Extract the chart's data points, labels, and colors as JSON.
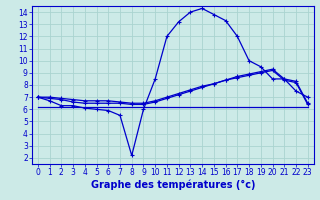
{
  "title": "Graphe des températures (°c)",
  "bg_color": "#cceae7",
  "grid_color": "#aad4d0",
  "line_color": "#0000cc",
  "xlim": [
    -0.5,
    23.5
  ],
  "ylim": [
    1.5,
    14.5
  ],
  "xticks": [
    0,
    1,
    2,
    3,
    4,
    5,
    6,
    7,
    8,
    9,
    10,
    11,
    12,
    13,
    14,
    15,
    16,
    17,
    18,
    19,
    20,
    21,
    22,
    23
  ],
  "yticks": [
    2,
    3,
    4,
    5,
    6,
    7,
    8,
    9,
    10,
    11,
    12,
    13,
    14
  ],
  "line1_x": [
    0,
    1,
    2,
    3,
    4,
    5,
    6,
    7,
    8,
    9,
    10,
    11,
    12,
    13,
    14,
    15,
    16,
    17,
    18,
    19,
    20,
    21,
    22,
    23
  ],
  "line1_y": [
    7.0,
    6.7,
    6.3,
    6.3,
    6.1,
    6.0,
    5.9,
    5.5,
    2.2,
    6.0,
    8.5,
    12.0,
    13.2,
    14.0,
    14.3,
    13.8,
    13.3,
    12.0,
    10.0,
    9.5,
    8.5,
    8.5,
    7.5,
    7.0
  ],
  "line2_x": [
    0,
    1,
    2,
    3,
    4,
    5,
    6,
    7,
    8,
    9,
    10,
    11,
    12,
    13,
    14,
    15,
    16,
    17,
    18,
    19,
    20,
    21,
    22,
    23
  ],
  "line2_y": [
    7.0,
    6.9,
    6.8,
    6.6,
    6.5,
    6.5,
    6.5,
    6.5,
    6.4,
    6.4,
    6.6,
    6.9,
    7.2,
    7.5,
    7.8,
    8.1,
    8.4,
    8.7,
    8.9,
    9.1,
    9.3,
    8.5,
    8.3,
    6.5
  ],
  "line3_x": [
    0,
    1,
    2,
    3,
    4,
    5,
    6,
    7,
    8,
    9,
    10,
    11,
    12,
    13,
    14,
    15,
    16,
    17,
    18,
    19,
    20,
    21,
    22,
    23
  ],
  "line3_y": [
    7.0,
    7.0,
    6.9,
    6.8,
    6.7,
    6.7,
    6.7,
    6.6,
    6.5,
    6.5,
    6.7,
    7.0,
    7.3,
    7.6,
    7.9,
    8.1,
    8.4,
    8.6,
    8.8,
    9.0,
    9.2,
    8.4,
    8.2,
    6.4
  ],
  "line4_x": [
    0,
    23
  ],
  "line4_y": [
    6.2,
    6.2
  ],
  "xlabel_size": 7,
  "tick_size": 5.5
}
